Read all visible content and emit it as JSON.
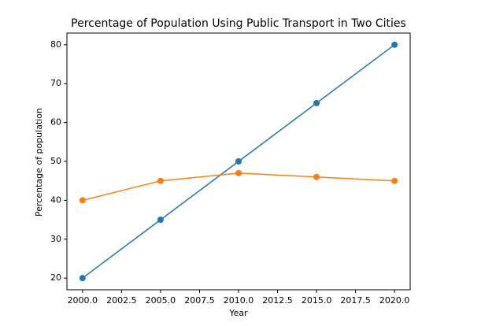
{
  "chart_data": {
    "type": "line",
    "title": "Percentage of Population Using Public Transport in Two Cities",
    "x_label": "Year",
    "y_label": "Percentage of population",
    "x": [
      2000,
      2005,
      2010,
      2015,
      2020
    ],
    "series": [
      {
        "color": "#1f77b4",
        "values": [
          20,
          35,
          50,
          65,
          80
        ]
      },
      {
        "color": "#ff7f0e",
        "values": [
          40,
          45,
          47,
          46,
          45
        ]
      }
    ],
    "xlim": [
      1999,
      2021
    ],
    "xticks": [
      {
        "value": 2000,
        "label": "2000.0"
      },
      {
        "value": 2002.5,
        "label": "2002.5"
      },
      {
        "value": 2005,
        "label": "2005.0"
      },
      {
        "value": 2007.5,
        "label": "2007.5"
      },
      {
        "value": 2010,
        "label": "2010.0"
      },
      {
        "value": 2012.5,
        "label": "2012.5"
      },
      {
        "value": 2015,
        "label": "2015.0"
      },
      {
        "value": 2017.5,
        "label": "2017.5"
      },
      {
        "value": 2020,
        "label": "2020.0"
      }
    ],
    "ylim": [
      17,
      83
    ],
    "yticks": [
      20,
      30,
      40,
      50,
      60,
      70,
      80
    ],
    "grid": false,
    "markers": true
  }
}
